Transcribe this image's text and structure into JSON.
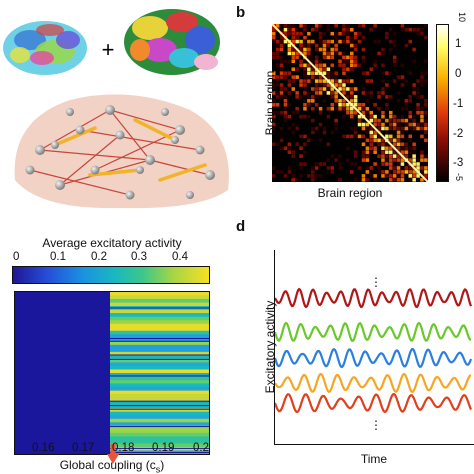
{
  "panels": {
    "a": {
      "plus_sign": "+"
    },
    "b": {
      "letter": "b",
      "xlabel": "Brain region",
      "ylabel": "Brain region",
      "colorbar_ticks": [
        "1",
        "0",
        "-1",
        "-2",
        "-3"
      ],
      "colorbar_top_cut": "10",
      "colorbar_bottom_cut": "-5"
    },
    "c": {
      "colorbar_title": "Average excitatory activity",
      "colorbar_ticks": [
        "0",
        "0.1",
        "0.2",
        "0.3",
        "0.4"
      ],
      "xlabel": "Global coupling (c",
      "xlabel_sub": "s",
      "xlabel_end": ")",
      "xticks": [
        "0.16",
        "0.17",
        "0.18",
        "0.19",
        "0.2"
      ],
      "arrow_color": "#e8553a"
    },
    "d": {
      "letter": "d",
      "ylabel": "Excitatory activity",
      "xlabel": "Time",
      "ellipsis": "⋮",
      "trace_colors": [
        "#b01717",
        "#6ac82a",
        "#2a7fe0",
        "#f5a623",
        "#e0401e"
      ]
    }
  },
  "chart_data": {
    "type": "heatmap",
    "title": "",
    "xlabel": "Global coupling (cs)",
    "ylabel": "",
    "xlim": [
      0.152,
      0.201
    ],
    "colorbar_label": "Average excitatory activity",
    "colorbar_range": [
      0,
      0.45
    ],
    "transition_coupling": 0.176,
    "below_transition_value": 0,
    "above_transition_value_range": [
      0.15,
      0.45
    ]
  }
}
